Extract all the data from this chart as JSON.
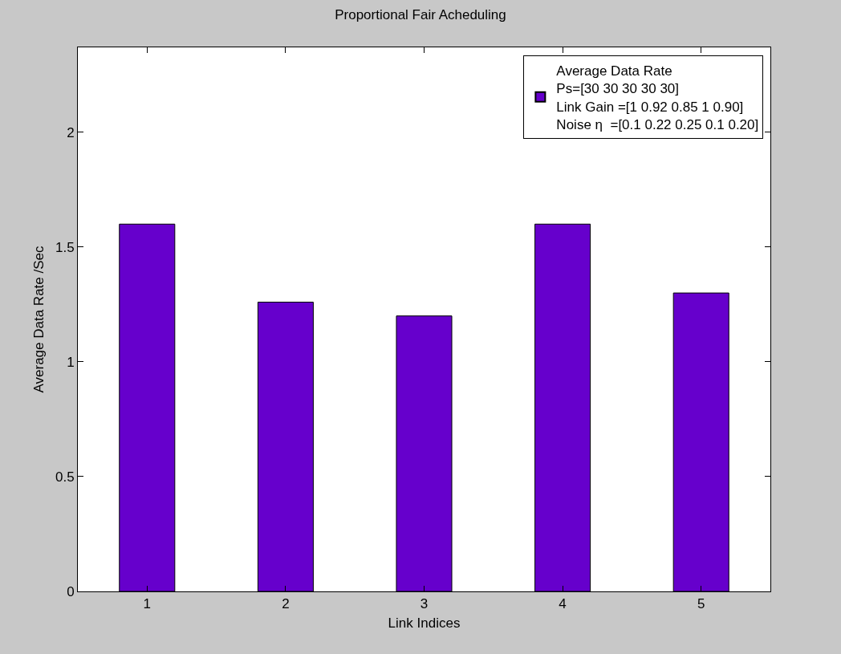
{
  "chart_data": {
    "type": "bar",
    "title": "Proportional Fair Acheduling",
    "xlabel": "Link Indices",
    "ylabel": "Average Data Rate /Sec",
    "x": [
      1,
      2,
      3,
      4,
      5
    ],
    "series": [
      {
        "name": "Average Data Rate\nPs=[30 30 30 30 30]\nLink Gain =[1 0.92 0.85 1 0.90]\nNoise η  =[0.1 0.22 0.25 0.1 0.20]",
        "color": "#6600cc",
        "values": [
          1.6,
          1.26,
          1.2,
          1.6,
          1.3
        ]
      }
    ],
    "xlim": [
      0.5,
      5.5
    ],
    "xticks": [
      1,
      2,
      3,
      4,
      5
    ],
    "ylim": [
      0,
      2.37
    ],
    "yticks": [
      0,
      0.5,
      1,
      1.5,
      2
    ],
    "legend": "top right"
  }
}
